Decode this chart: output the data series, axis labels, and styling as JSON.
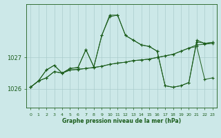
{
  "title": "Graphe pression niveau de la mer (hPa)",
  "bg_color": "#cce8e8",
  "grid_color": "#aacccc",
  "line_color": "#1a5c1a",
  "x_labels": [
    "0",
    "1",
    "2",
    "3",
    "4",
    "5",
    "6",
    "7",
    "8",
    "9",
    "10",
    "11",
    "12",
    "13",
    "14",
    "15",
    "16",
    "17",
    "18",
    "19",
    "20",
    "21",
    "22",
    "23"
  ],
  "ylim": [
    1025.4,
    1028.7
  ],
  "yticks": [
    1026,
    1027
  ],
  "series": [
    [
      1026.05,
      1026.25,
      1026.35,
      1026.55,
      1026.5,
      1026.6,
      1026.62,
      1026.65,
      1026.68,
      1026.72,
      1026.78,
      1026.82,
      1026.85,
      1026.9,
      1026.92,
      1026.95,
      1027.0,
      1027.05,
      1027.1,
      1027.2,
      1027.3,
      1027.4,
      1027.42,
      1027.45
    ],
    [
      1026.05,
      1026.25,
      1026.35,
      1026.55,
      1026.5,
      1026.6,
      1026.62,
      1026.65,
      1026.68,
      1026.72,
      1026.78,
      1026.82,
      1026.85,
      1026.9,
      1026.92,
      1026.95,
      1027.0,
      1027.05,
      1027.1,
      1027.2,
      1027.3,
      1027.35,
      1026.3,
      1026.35
    ],
    [
      1026.05,
      1026.25,
      1026.6,
      1026.75,
      1026.5,
      1026.65,
      1026.68,
      1027.25,
      1026.7,
      1027.7,
      1028.3,
      1028.35,
      1027.7,
      1027.55,
      1027.4,
      1027.35,
      1027.2,
      1026.1,
      1026.05,
      1026.1,
      1026.2,
      1027.5,
      1027.45,
      1027.48
    ],
    [
      1026.05,
      1026.25,
      1026.6,
      1026.75,
      1026.5,
      1026.65,
      1026.68,
      1027.25,
      1026.7,
      1027.7,
      1028.35,
      1028.35,
      1027.7,
      1027.55,
      1027.4,
      1027.35,
      1027.2,
      1026.1,
      1026.05,
      1026.1,
      1026.2,
      1027.55,
      1027.45,
      1027.48
    ]
  ]
}
